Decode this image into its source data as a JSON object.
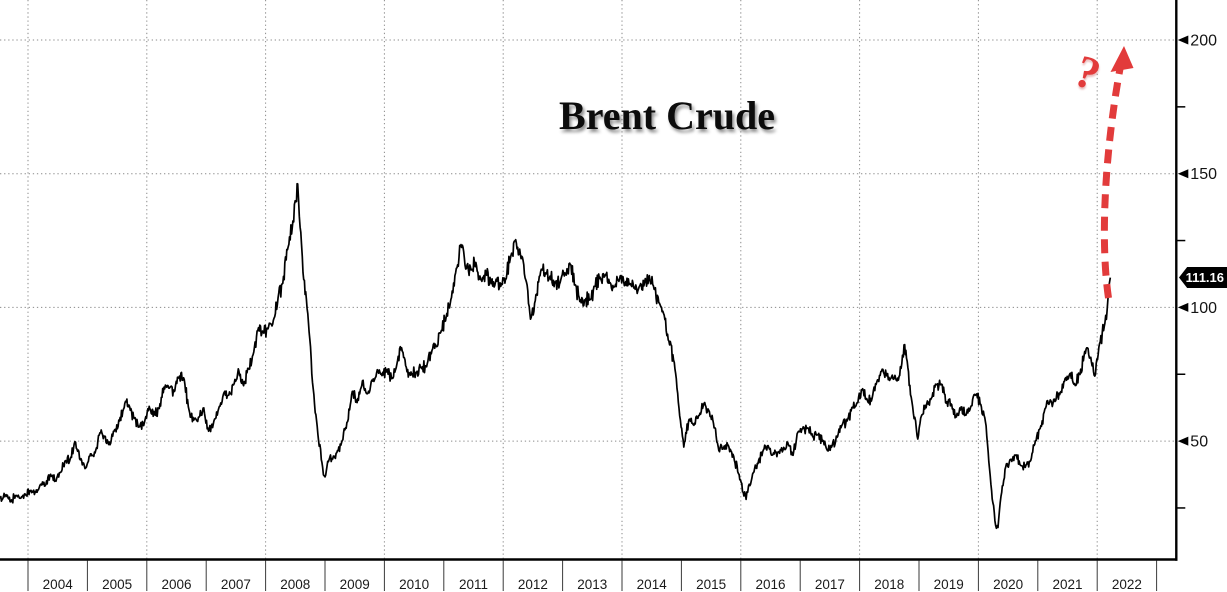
{
  "title": "Brent Crude",
  "annotations": {
    "question_mark": "?",
    "last_price_label": "111.16",
    "projection_arrow": "red dashed arrow pointing up toward 200 level"
  },
  "colors": {
    "accent_red": "#e23b3b",
    "series_line": "#000000",
    "grid": "#8a8a8a",
    "axis": "#000000",
    "tick_label": "#141414",
    "year_label": "#1a1a1a",
    "price_tag_bg": "#000000",
    "price_tag_fg": "#ffffff",
    "background": "#ffffff",
    "title_color": "#0c0c0c"
  },
  "chart_data": {
    "type": "line",
    "title": "Brent Crude",
    "xlabel": "",
    "ylabel": "",
    "legend": "none",
    "grid": "dotted; horizontal every 50, vertical every 2 years",
    "xlim": [
      2003.53,
      2022.35
    ],
    "ylim": [
      6,
      215
    ],
    "x_ticks": [
      "2004",
      "2005",
      "2006",
      "2007",
      "2008",
      "2009",
      "2010",
      "2011",
      "2012",
      "2013",
      "2014",
      "2015",
      "2016",
      "2017",
      "2018",
      "2019",
      "2020",
      "2021",
      "2022"
    ],
    "x_gridline_years": [
      2004,
      2006,
      2008,
      2010,
      2012,
      2014,
      2016,
      2018,
      2020,
      2022
    ],
    "y_ticks": [
      200,
      150,
      100,
      50
    ],
    "y_minor_ticks": [
      175,
      125,
      75,
      25
    ],
    "last_price": 111.16,
    "series": [
      {
        "name": "Brent Crude",
        "points": [
          [
            2003.53,
            28.5
          ],
          [
            2003.62,
            29.6
          ],
          [
            2003.71,
            27.3
          ],
          [
            2003.79,
            29.6
          ],
          [
            2003.88,
            28.7
          ],
          [
            2003.96,
            29.9
          ],
          [
            2004.04,
            31.3
          ],
          [
            2004.13,
            30.8
          ],
          [
            2004.21,
            33.8
          ],
          [
            2004.29,
            33.3
          ],
          [
            2004.38,
            37.6
          ],
          [
            2004.46,
            35.2
          ],
          [
            2004.54,
            38.2
          ],
          [
            2004.63,
            42.7
          ],
          [
            2004.71,
            43.3
          ],
          [
            2004.79,
            49.8
          ],
          [
            2004.88,
            43.0
          ],
          [
            2004.96,
            39.7
          ],
          [
            2005.04,
            44.3
          ],
          [
            2005.13,
            45.6
          ],
          [
            2005.21,
            53.1
          ],
          [
            2005.29,
            51.8
          ],
          [
            2005.38,
            48.6
          ],
          [
            2005.46,
            54.3
          ],
          [
            2005.54,
            57.5
          ],
          [
            2005.63,
            64.1
          ],
          [
            2005.71,
            62.9
          ],
          [
            2005.79,
            58.5
          ],
          [
            2005.88,
            55.3
          ],
          [
            2005.96,
            56.9
          ],
          [
            2006.04,
            63.0
          ],
          [
            2006.13,
            60.1
          ],
          [
            2006.21,
            62.2
          ],
          [
            2006.29,
            70.2
          ],
          [
            2006.38,
            69.8
          ],
          [
            2006.46,
            68.5
          ],
          [
            2006.54,
            73.9
          ],
          [
            2006.63,
            73.1
          ],
          [
            2006.71,
            61.7
          ],
          [
            2006.79,
            57.8
          ],
          [
            2006.88,
            59.0
          ],
          [
            2006.96,
            62.4
          ],
          [
            2007.04,
            53.7
          ],
          [
            2007.13,
            57.5
          ],
          [
            2007.21,
            62.2
          ],
          [
            2007.29,
            67.5
          ],
          [
            2007.38,
            67.2
          ],
          [
            2007.46,
            71.0
          ],
          [
            2007.54,
            77.0
          ],
          [
            2007.63,
            70.7
          ],
          [
            2007.71,
            77.2
          ],
          [
            2007.79,
            82.3
          ],
          [
            2007.88,
            92.4
          ],
          [
            2007.96,
            91.0
          ],
          [
            2008.04,
            92.0
          ],
          [
            2008.13,
            95.1
          ],
          [
            2008.21,
            103.7
          ],
          [
            2008.29,
            109.0
          ],
          [
            2008.38,
            122.7
          ],
          [
            2008.46,
            132.3
          ],
          [
            2008.51,
            139.5
          ],
          [
            2008.54,
            146.2
          ],
          [
            2008.58,
            130.0
          ],
          [
            2008.63,
            113.0
          ],
          [
            2008.71,
            97.7
          ],
          [
            2008.79,
            71.9
          ],
          [
            2008.88,
            52.5
          ],
          [
            2008.96,
            40.3
          ],
          [
            2009.0,
            36.6
          ],
          [
            2009.08,
            43.9
          ],
          [
            2009.13,
            43.3
          ],
          [
            2009.21,
            46.5
          ],
          [
            2009.29,
            50.2
          ],
          [
            2009.38,
            57.3
          ],
          [
            2009.46,
            68.6
          ],
          [
            2009.54,
            64.4
          ],
          [
            2009.63,
            72.5
          ],
          [
            2009.71,
            67.7
          ],
          [
            2009.79,
            72.8
          ],
          [
            2009.88,
            76.7
          ],
          [
            2009.96,
            74.5
          ],
          [
            2010.04,
            76.2
          ],
          [
            2010.13,
            73.7
          ],
          [
            2010.21,
            78.8
          ],
          [
            2010.29,
            84.9
          ],
          [
            2010.38,
            75.9
          ],
          [
            2010.46,
            74.8
          ],
          [
            2010.54,
            75.6
          ],
          [
            2010.63,
            77.1
          ],
          [
            2010.71,
            77.8
          ],
          [
            2010.79,
            82.7
          ],
          [
            2010.88,
            85.3
          ],
          [
            2010.96,
            91.4
          ],
          [
            2011.04,
            96.5
          ],
          [
            2011.13,
            103.7
          ],
          [
            2011.21,
            114.6
          ],
          [
            2011.29,
            123.5
          ],
          [
            2011.38,
            114.5
          ],
          [
            2011.46,
            114.0
          ],
          [
            2011.54,
            116.8
          ],
          [
            2011.63,
            110.2
          ],
          [
            2011.71,
            112.8
          ],
          [
            2011.79,
            109.6
          ],
          [
            2011.88,
            110.5
          ],
          [
            2011.96,
            107.9
          ],
          [
            2012.04,
            110.7
          ],
          [
            2012.13,
            119.3
          ],
          [
            2012.21,
            125.3
          ],
          [
            2012.29,
            119.8
          ],
          [
            2012.38,
            110.3
          ],
          [
            2012.46,
            95.6
          ],
          [
            2012.54,
            102.6
          ],
          [
            2012.63,
            113.3
          ],
          [
            2012.71,
            112.9
          ],
          [
            2012.79,
            111.7
          ],
          [
            2012.88,
            109.2
          ],
          [
            2012.96,
            109.4
          ],
          [
            2013.04,
            112.9
          ],
          [
            2013.13,
            116.0
          ],
          [
            2013.21,
            108.5
          ],
          [
            2013.29,
            102.2
          ],
          [
            2013.38,
            102.6
          ],
          [
            2013.46,
            103.0
          ],
          [
            2013.54,
            107.9
          ],
          [
            2013.63,
            111.3
          ],
          [
            2013.71,
            111.6
          ],
          [
            2013.79,
            109.1
          ],
          [
            2013.88,
            107.8
          ],
          [
            2013.96,
            110.8
          ],
          [
            2014.04,
            108.1
          ],
          [
            2014.13,
            108.9
          ],
          [
            2014.21,
            107.5
          ],
          [
            2014.29,
            107.7
          ],
          [
            2014.38,
            109.5
          ],
          [
            2014.46,
            111.9
          ],
          [
            2014.54,
            106.8
          ],
          [
            2014.63,
            101.6
          ],
          [
            2014.71,
            97.1
          ],
          [
            2014.79,
            87.4
          ],
          [
            2014.88,
            79.4
          ],
          [
            2014.96,
            62.3
          ],
          [
            2015.04,
            47.8
          ],
          [
            2015.13,
            58.1
          ],
          [
            2015.21,
            55.9
          ],
          [
            2015.29,
            59.5
          ],
          [
            2015.38,
            64.1
          ],
          [
            2015.46,
            61.5
          ],
          [
            2015.54,
            56.6
          ],
          [
            2015.63,
            46.5
          ],
          [
            2015.71,
            47.6
          ],
          [
            2015.79,
            48.4
          ],
          [
            2015.88,
            44.3
          ],
          [
            2015.96,
            37.9
          ],
          [
            2016.04,
            30.8
          ],
          [
            2016.09,
            28.2
          ],
          [
            2016.13,
            33.2
          ],
          [
            2016.21,
            38.2
          ],
          [
            2016.29,
            41.6
          ],
          [
            2016.38,
            46.7
          ],
          [
            2016.46,
            48.3
          ],
          [
            2016.54,
            44.9
          ],
          [
            2016.63,
            45.8
          ],
          [
            2016.71,
            46.6
          ],
          [
            2016.79,
            49.5
          ],
          [
            2016.88,
            44.7
          ],
          [
            2016.96,
            53.3
          ],
          [
            2017.04,
            54.6
          ],
          [
            2017.13,
            54.9
          ],
          [
            2017.21,
            51.6
          ],
          [
            2017.29,
            52.3
          ],
          [
            2017.38,
            50.3
          ],
          [
            2017.46,
            46.4
          ],
          [
            2017.54,
            48.5
          ],
          [
            2017.63,
            51.7
          ],
          [
            2017.71,
            56.2
          ],
          [
            2017.79,
            57.5
          ],
          [
            2017.88,
            62.7
          ],
          [
            2017.96,
            64.4
          ],
          [
            2018.04,
            69.1
          ],
          [
            2018.13,
            65.3
          ],
          [
            2018.21,
            66.0
          ],
          [
            2018.29,
            72.1
          ],
          [
            2018.38,
            76.9
          ],
          [
            2018.46,
            74.4
          ],
          [
            2018.54,
            74.2
          ],
          [
            2018.63,
            72.5
          ],
          [
            2018.71,
            78.9
          ],
          [
            2018.76,
            86.1
          ],
          [
            2018.79,
            81.0
          ],
          [
            2018.88,
            64.8
          ],
          [
            2018.98,
            50.8
          ],
          [
            2019.04,
            59.4
          ],
          [
            2019.13,
            63.9
          ],
          [
            2019.21,
            66.1
          ],
          [
            2019.29,
            71.2
          ],
          [
            2019.38,
            71.3
          ],
          [
            2019.46,
            64.2
          ],
          [
            2019.54,
            63.9
          ],
          [
            2019.63,
            59.0
          ],
          [
            2019.71,
            62.8
          ],
          [
            2019.79,
            59.7
          ],
          [
            2019.88,
            63.2
          ],
          [
            2019.96,
            67.3
          ],
          [
            2020.04,
            63.7
          ],
          [
            2020.13,
            55.7
          ],
          [
            2020.21,
            33.9
          ],
          [
            2020.29,
            18.5
          ],
          [
            2020.33,
            17.7
          ],
          [
            2020.38,
            29.4
          ],
          [
            2020.46,
            40.3
          ],
          [
            2020.54,
            43.2
          ],
          [
            2020.63,
            44.7
          ],
          [
            2020.71,
            40.9
          ],
          [
            2020.79,
            40.2
          ],
          [
            2020.88,
            42.7
          ],
          [
            2020.96,
            50.1
          ],
          [
            2021.04,
            54.8
          ],
          [
            2021.13,
            62.3
          ],
          [
            2021.21,
            65.4
          ],
          [
            2021.29,
            64.8
          ],
          [
            2021.38,
            68.3
          ],
          [
            2021.46,
            73.4
          ],
          [
            2021.54,
            75.2
          ],
          [
            2021.63,
            70.8
          ],
          [
            2021.71,
            74.9
          ],
          [
            2021.79,
            83.5
          ],
          [
            2021.88,
            81.1
          ],
          [
            2021.96,
            74.3
          ],
          [
            2022.04,
            86.5
          ],
          [
            2022.13,
            94.1
          ],
          [
            2022.18,
            103.0
          ],
          [
            2022.22,
            111.16
          ]
        ]
      }
    ]
  }
}
